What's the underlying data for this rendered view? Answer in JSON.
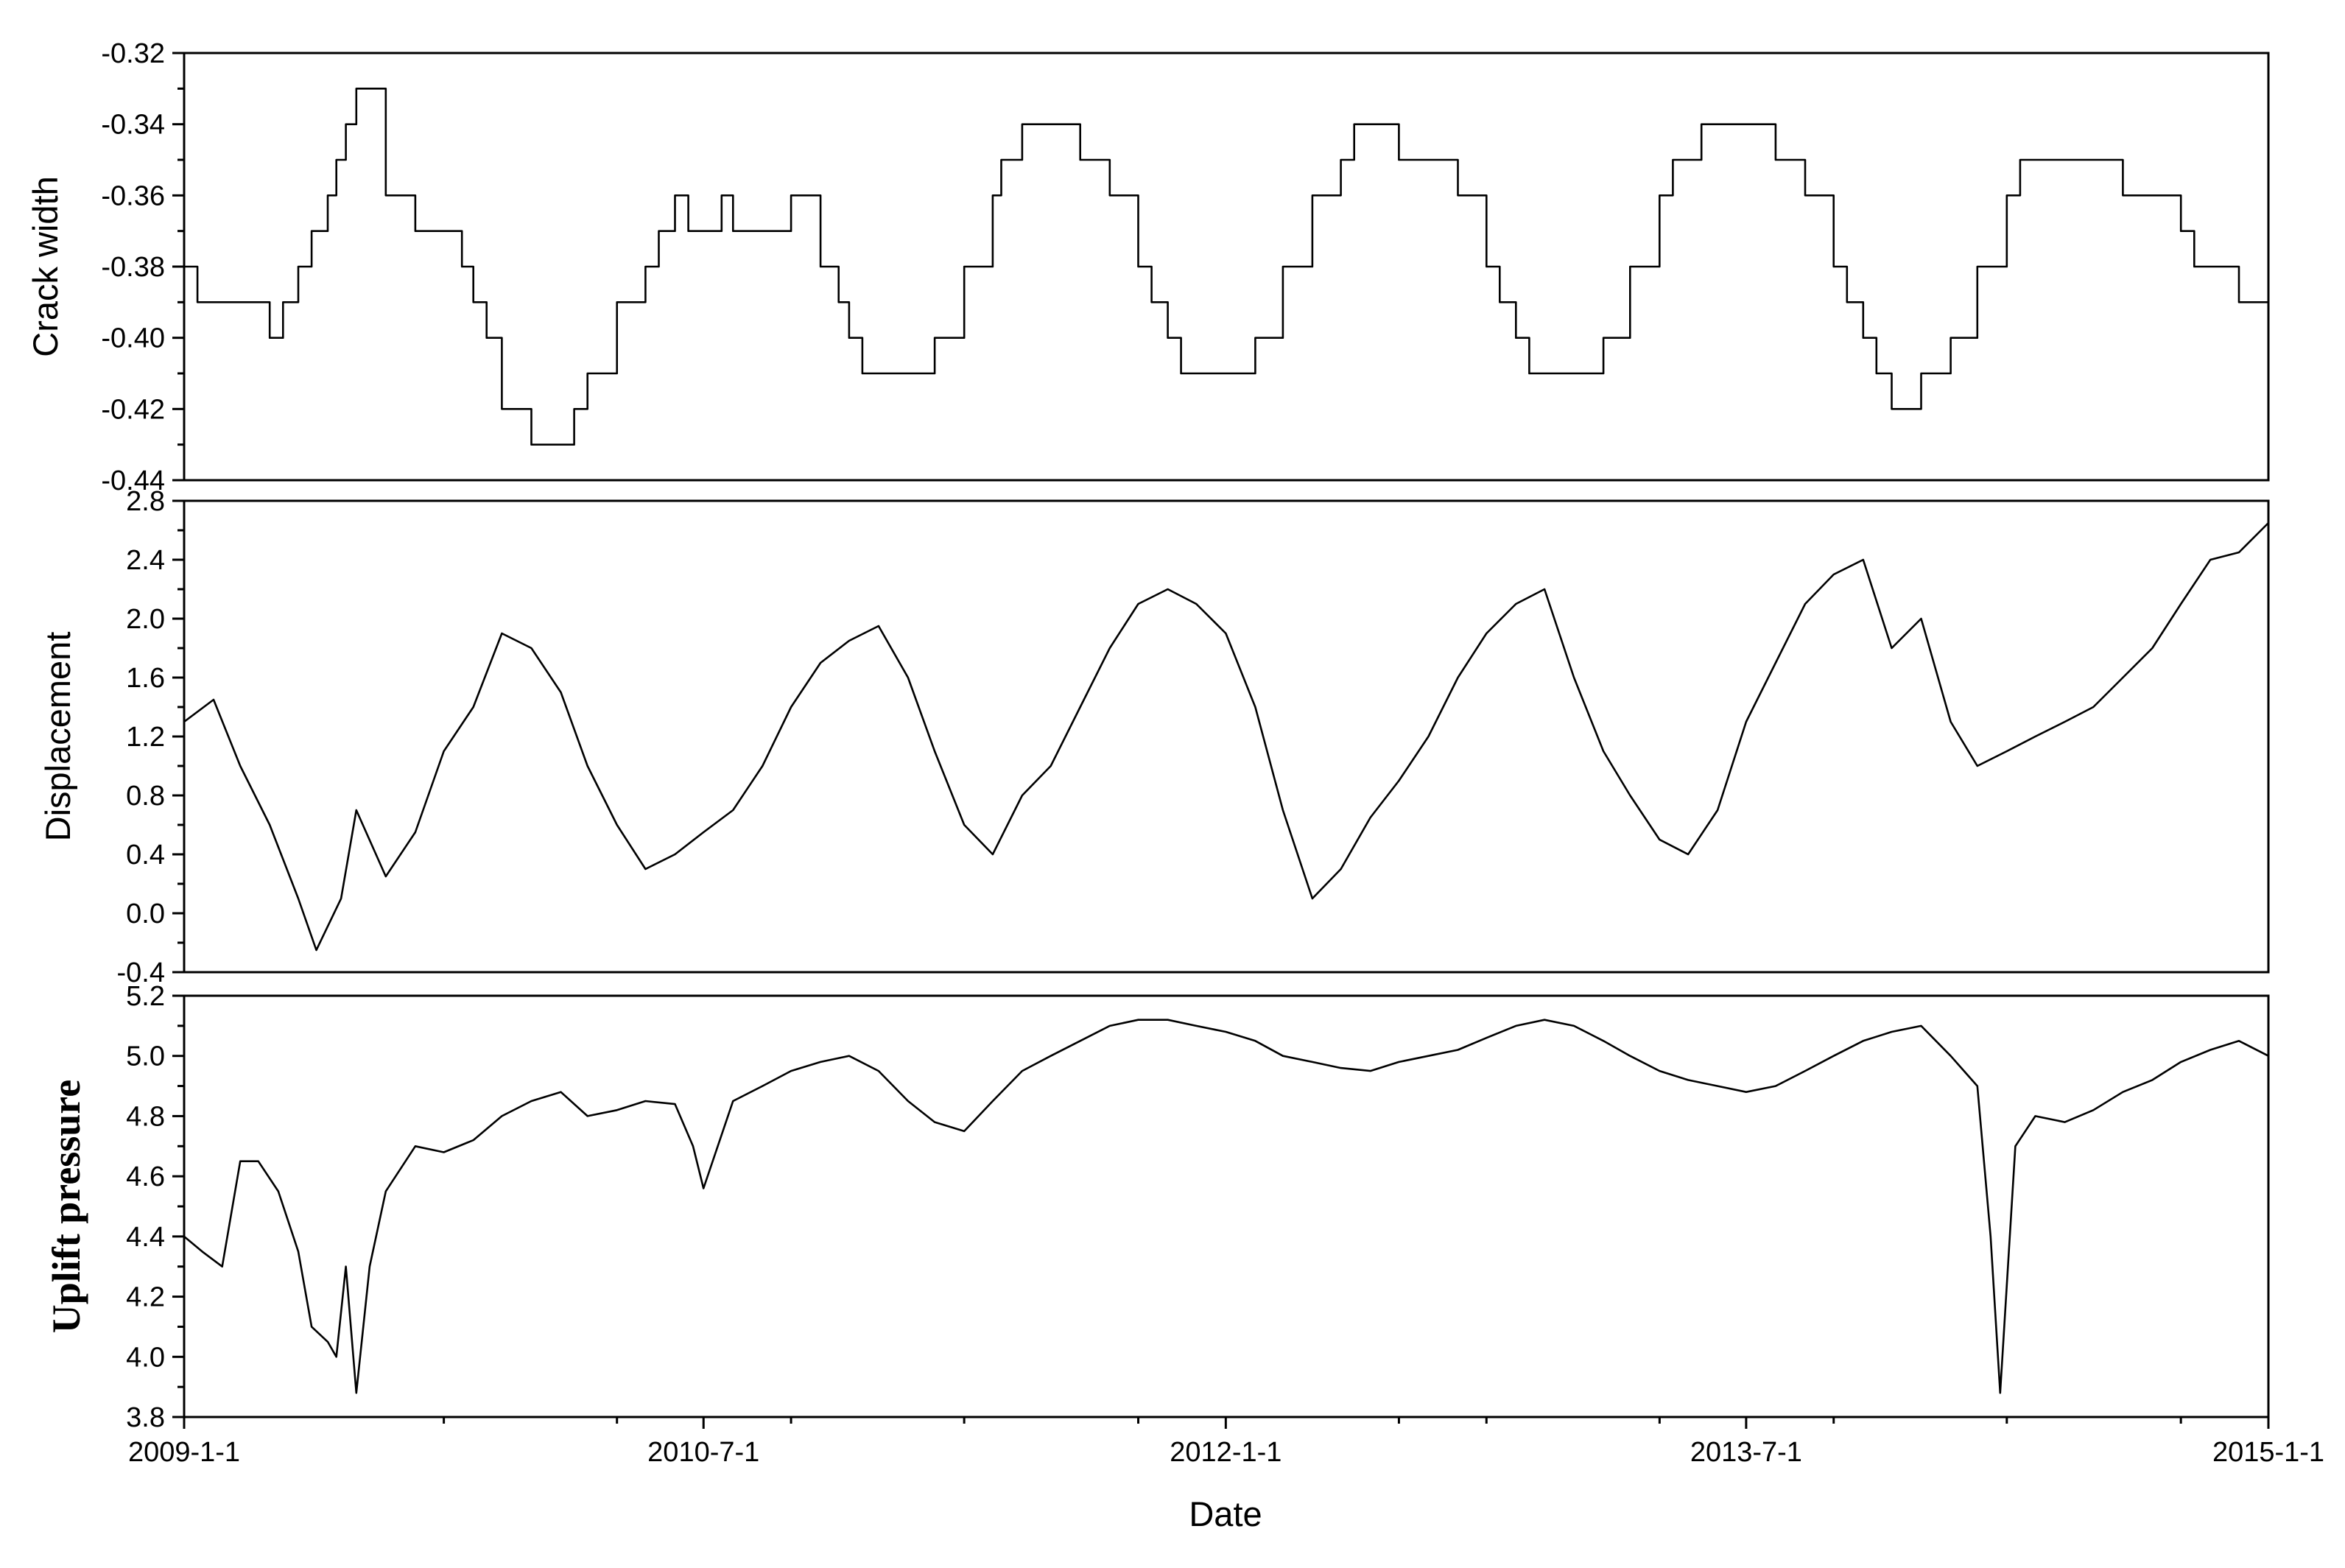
{
  "chart_data": [
    {
      "type": "line",
      "panel": "top",
      "ylabel": "Crack width",
      "ylim": [
        -0.44,
        -0.32
      ],
      "yticks": [
        "-0.32",
        "-0.34",
        "-0.36",
        "-0.38",
        "-0.40",
        "-0.42",
        "-0.44"
      ],
      "ytick_values": [
        -0.32,
        -0.34,
        -0.36,
        -0.38,
        -0.4,
        -0.42,
        -0.44
      ],
      "step": true,
      "series": [
        {
          "x": [
            "2009-01-01",
            "2009-01-15",
            "2009-02-01",
            "2009-03-01",
            "2009-04-01",
            "2009-04-15",
            "2009-05-01",
            "2009-05-15",
            "2009-06-01",
            "2009-06-10",
            "2009-06-20",
            "2009-07-01",
            "2009-08-01",
            "2009-09-01",
            "2009-10-01",
            "2009-10-20",
            "2009-11-01",
            "2009-11-15",
            "2009-12-01",
            "2010-01-01",
            "2010-02-01",
            "2010-02-15",
            "2010-03-01",
            "2010-04-01",
            "2010-05-01",
            "2010-05-15",
            "2010-06-01",
            "2010-06-15",
            "2010-07-01",
            "2010-07-20",
            "2010-08-01",
            "2010-09-01",
            "2010-10-01",
            "2010-11-01",
            "2010-11-20",
            "2010-12-01",
            "2010-12-15",
            "2011-01-01",
            "2011-02-01",
            "2011-03-01",
            "2011-04-01",
            "2011-05-01",
            "2011-05-10",
            "2011-06-01",
            "2011-06-15",
            "2011-07-01",
            "2011-08-01",
            "2011-09-01",
            "2011-10-01",
            "2011-10-15",
            "2011-11-01",
            "2011-11-15",
            "2011-12-01",
            "2012-01-01",
            "2012-02-01",
            "2012-03-01",
            "2012-04-01",
            "2012-05-01",
            "2012-05-15",
            "2012-06-01",
            "2012-06-15",
            "2012-07-01",
            "2012-08-01",
            "2012-09-01",
            "2012-10-01",
            "2012-10-15",
            "2012-11-01",
            "2012-11-15",
            "2012-12-01",
            "2013-01-01",
            "2013-02-01",
            "2013-03-01",
            "2013-04-01",
            "2013-04-15",
            "2013-05-01",
            "2013-05-15",
            "2013-06-01",
            "2013-07-01",
            "2013-08-01",
            "2013-09-01",
            "2013-10-01",
            "2013-10-15",
            "2013-11-01",
            "2013-11-15",
            "2013-12-01",
            "2014-01-01",
            "2014-02-01",
            "2014-03-01",
            "2014-04-01",
            "2014-04-15",
            "2014-05-01",
            "2014-05-15",
            "2014-06-01",
            "2014-07-01",
            "2014-08-01",
            "2014-09-01",
            "2014-10-01",
            "2014-10-15",
            "2014-11-01",
            "2014-11-15",
            "2014-12-01",
            "2014-12-20",
            "2015-01-01"
          ],
          "values": [
            -0.38,
            -0.39,
            -0.39,
            -0.39,
            -0.4,
            -0.39,
            -0.38,
            -0.37,
            -0.36,
            -0.35,
            -0.34,
            -0.33,
            -0.36,
            -0.37,
            -0.37,
            -0.38,
            -0.39,
            -0.4,
            -0.42,
            -0.43,
            -0.43,
            -0.42,
            -0.41,
            -0.39,
            -0.38,
            -0.37,
            -0.36,
            -0.37,
            -0.37,
            -0.36,
            -0.37,
            -0.37,
            -0.36,
            -0.38,
            -0.39,
            -0.4,
            -0.41,
            -0.41,
            -0.41,
            -0.4,
            -0.38,
            -0.36,
            -0.35,
            -0.34,
            -0.34,
            -0.34,
            -0.35,
            -0.36,
            -0.38,
            -0.39,
            -0.4,
            -0.41,
            -0.41,
            -0.41,
            -0.4,
            -0.38,
            -0.36,
            -0.35,
            -0.34,
            -0.34,
            -0.34,
            -0.35,
            -0.35,
            -0.36,
            -0.38,
            -0.39,
            -0.4,
            -0.41,
            -0.41,
            -0.41,
            -0.4,
            -0.38,
            -0.36,
            -0.35,
            -0.35,
            -0.34,
            -0.34,
            -0.34,
            -0.35,
            -0.36,
            -0.38,
            -0.39,
            -0.4,
            -0.41,
            -0.42,
            -0.41,
            -0.4,
            -0.38,
            -0.36,
            -0.35,
            -0.35,
            -0.35,
            -0.35,
            -0.35,
            -0.36,
            -0.36,
            -0.37,
            -0.38,
            -0.38,
            -0.38,
            -0.39,
            -0.39,
            -0.4
          ]
        }
      ]
    },
    {
      "type": "line",
      "panel": "middle",
      "ylabel": "Displacement",
      "ylim": [
        -0.4,
        2.8
      ],
      "yticks": [
        "2.8",
        "2.4",
        "2.0",
        "1.6",
        "1.2",
        "0.8",
        "0.4",
        "0.0",
        "-0.4"
      ],
      "ytick_values": [
        2.8,
        2.4,
        2.0,
        1.6,
        1.2,
        0.8,
        0.4,
        0.0,
        -0.4
      ],
      "series": [
        {
          "x": [
            "2009-01-01",
            "2009-02-01",
            "2009-03-01",
            "2009-04-01",
            "2009-05-01",
            "2009-05-20",
            "2009-06-15",
            "2009-07-01",
            "2009-08-01",
            "2009-09-01",
            "2009-10-01",
            "2009-11-01",
            "2009-12-01",
            "2010-01-01",
            "2010-02-01",
            "2010-03-01",
            "2010-04-01",
            "2010-05-01",
            "2010-06-01",
            "2010-07-01",
            "2010-08-01",
            "2010-09-01",
            "2010-10-01",
            "2010-11-01",
            "2010-12-01",
            "2011-01-01",
            "2011-02-01",
            "2011-03-01",
            "2011-04-01",
            "2011-05-01",
            "2011-06-01",
            "2011-07-01",
            "2011-08-01",
            "2011-09-01",
            "2011-10-01",
            "2011-11-01",
            "2011-12-01",
            "2012-01-01",
            "2012-02-01",
            "2012-03-01",
            "2012-04-01",
            "2012-05-01",
            "2012-06-01",
            "2012-07-01",
            "2012-08-01",
            "2012-09-01",
            "2012-10-01",
            "2012-11-01",
            "2012-12-01",
            "2013-01-01",
            "2013-02-01",
            "2013-03-01",
            "2013-04-01",
            "2013-05-01",
            "2013-06-01",
            "2013-07-01",
            "2013-08-01",
            "2013-09-01",
            "2013-10-01",
            "2013-11-01",
            "2013-12-01",
            "2014-01-01",
            "2014-02-01",
            "2014-03-01",
            "2014-04-01",
            "2014-05-01",
            "2014-06-01",
            "2014-07-01",
            "2014-08-01",
            "2014-09-01",
            "2014-10-01",
            "2014-11-01",
            "2014-12-01",
            "2015-01-01"
          ],
          "values": [
            1.3,
            1.45,
            1.0,
            0.6,
            0.1,
            -0.25,
            0.1,
            0.7,
            0.25,
            0.55,
            1.1,
            1.4,
            1.9,
            1.8,
            1.5,
            1.0,
            0.6,
            0.3,
            0.4,
            0.55,
            0.7,
            1.0,
            1.4,
            1.7,
            1.85,
            1.95,
            1.6,
            1.1,
            0.6,
            0.4,
            0.8,
            1.0,
            1.4,
            1.8,
            2.1,
            2.2,
            2.1,
            1.9,
            1.4,
            0.7,
            0.1,
            0.3,
            0.65,
            0.9,
            1.2,
            1.6,
            1.9,
            2.1,
            2.2,
            1.6,
            1.1,
            0.8,
            0.5,
            0.4,
            0.7,
            1.3,
            1.7,
            2.1,
            2.3,
            2.4,
            1.8,
            2.0,
            1.3,
            1.0,
            1.1,
            1.2,
            1.3,
            1.4,
            1.6,
            1.8,
            2.1,
            2.4,
            2.45,
            2.65
          ]
        }
      ]
    },
    {
      "type": "line",
      "panel": "bottom",
      "ylabel": "Uplift pressure",
      "xlabel": "Date",
      "ylim": [
        3.8,
        5.2
      ],
      "yticks": [
        "5.2",
        "5.0",
        "4.8",
        "4.6",
        "4.4",
        "4.2",
        "4.0",
        "3.8"
      ],
      "ytick_values": [
        5.2,
        5.0,
        4.8,
        4.6,
        4.4,
        4.2,
        4.0,
        3.8
      ],
      "series": [
        {
          "x": [
            "2009-01-01",
            "2009-01-20",
            "2009-02-10",
            "2009-03-01",
            "2009-03-20",
            "2009-04-10",
            "2009-05-01",
            "2009-05-15",
            "2009-06-01",
            "2009-06-10",
            "2009-06-20",
            "2009-07-01",
            "2009-07-15",
            "2009-08-01",
            "2009-09-01",
            "2009-10-01",
            "2009-11-01",
            "2009-12-01",
            "2010-01-01",
            "2010-02-01",
            "2010-03-01",
            "2010-04-01",
            "2010-05-01",
            "2010-06-01",
            "2010-06-20",
            "2010-07-01",
            "2010-08-01",
            "2010-09-01",
            "2010-10-01",
            "2010-11-01",
            "2010-12-01",
            "2011-01-01",
            "2011-02-01",
            "2011-03-01",
            "2011-04-01",
            "2011-05-01",
            "2011-06-01",
            "2011-07-01",
            "2011-08-01",
            "2011-09-01",
            "2011-10-01",
            "2011-11-01",
            "2011-12-01",
            "2012-01-01",
            "2012-02-01",
            "2012-03-01",
            "2012-04-01",
            "2012-05-01",
            "2012-06-01",
            "2012-07-01",
            "2012-08-01",
            "2012-09-01",
            "2012-10-01",
            "2012-11-01",
            "2012-12-01",
            "2013-01-01",
            "2013-02-01",
            "2013-03-01",
            "2013-04-01",
            "2013-05-01",
            "2013-06-01",
            "2013-07-01",
            "2013-08-01",
            "2013-09-01",
            "2013-10-01",
            "2013-11-01",
            "2013-12-01",
            "2014-01-01",
            "2014-02-01",
            "2014-03-01",
            "2014-03-15",
            "2014-03-25",
            "2014-04-10",
            "2014-05-01",
            "2014-06-01",
            "2014-07-01",
            "2014-08-01",
            "2014-09-01",
            "2014-10-01",
            "2014-11-01",
            "2014-12-01",
            "2015-01-01"
          ],
          "values": [
            4.4,
            4.35,
            4.3,
            4.65,
            4.65,
            4.55,
            4.35,
            4.1,
            4.05,
            4.0,
            4.3,
            3.88,
            4.3,
            4.55,
            4.7,
            4.68,
            4.72,
            4.8,
            4.85,
            4.88,
            4.8,
            4.82,
            4.85,
            4.84,
            4.7,
            4.56,
            4.85,
            4.9,
            4.95,
            4.98,
            5.0,
            4.95,
            4.85,
            4.78,
            4.75,
            4.85,
            4.95,
            5.0,
            5.05,
            5.1,
            5.12,
            5.12,
            5.1,
            5.08,
            5.05,
            5.0,
            4.98,
            4.96,
            4.95,
            4.98,
            5.0,
            5.02,
            5.06,
            5.1,
            5.12,
            5.1,
            5.05,
            5.0,
            4.95,
            4.92,
            4.9,
            4.88,
            4.9,
            4.95,
            5.0,
            5.05,
            5.08,
            5.1,
            5.0,
            4.9,
            4.4,
            3.88,
            4.7,
            4.8,
            4.78,
            4.82,
            4.88,
            4.92,
            4.98,
            5.02,
            5.05,
            5.0
          ]
        }
      ]
    }
  ],
  "x_axis": {
    "xlabel": "Date",
    "xlim": [
      "2009-01-01",
      "2015-01-01"
    ],
    "xticks": [
      "2009-1-1",
      "2010-7-1",
      "2012-1-1",
      "2013-7-1",
      "2015-1-1"
    ],
    "xtick_dates": [
      "2009-01-01",
      "2010-07-01",
      "2012-01-01",
      "2013-07-01",
      "2015-01-01"
    ],
    "minor_tick_dates": [
      "2009-10-01",
      "2010-04-01",
      "2010-10-01",
      "2011-04-01",
      "2011-10-01",
      "2012-07-01",
      "2012-10-01",
      "2013-04-01",
      "2013-10-01",
      "2014-04-01",
      "2014-10-01"
    ]
  },
  "grid": false,
  "legend": "none"
}
